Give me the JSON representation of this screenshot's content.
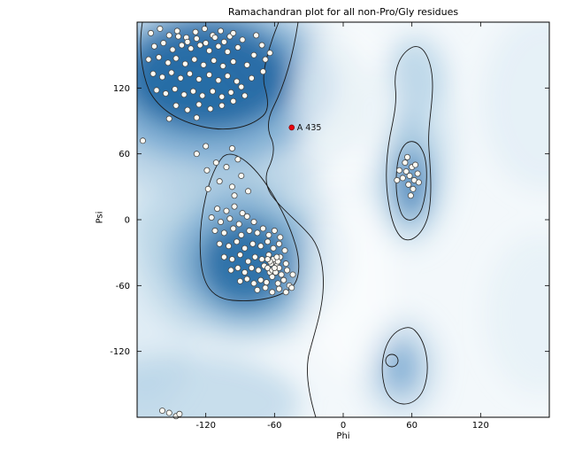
{
  "chart_data": {
    "type": "scatter",
    "title": "Ramachandran plot for all non-Pro/Gly residues",
    "xlabel": "Phi",
    "ylabel": "Psi",
    "xlim": [
      -180,
      180
    ],
    "ylim": [
      -180,
      180
    ],
    "xticks": [
      -120,
      -60,
      0,
      60,
      120
    ],
    "yticks": [
      -120,
      -60,
      0,
      60,
      120
    ],
    "grid": false,
    "legend": "none",
    "background_style": "blue density map with black contour lines (favored/allowed Ramachandran regions)",
    "colors": {
      "background": "#f3f8fb",
      "density_dark": "#19619f",
      "density_mid": "#4f8fc2",
      "density_light": "#9dc2dc",
      "contour": "#1a1a1a",
      "marker_fill": "#fdfbf3",
      "marker_stroke": "#4a4a4a",
      "outlier": "#e8000d"
    },
    "series": [
      {
        "name": "non-Pro/Gly residues",
        "marker": {
          "fill": "#fdfbf3",
          "stroke": "#4a4a4a",
          "radius": 3.1
        },
        "points": [
          [
            -168,
            170
          ],
          [
            -160,
            174
          ],
          [
            -152,
            168
          ],
          [
            -145,
            172
          ],
          [
            -137,
            166
          ],
          [
            -129,
            171
          ],
          [
            -121,
            174
          ],
          [
            -114,
            168
          ],
          [
            -107,
            172
          ],
          [
            -99,
            167
          ],
          [
            -165,
            158
          ],
          [
            -157,
            161
          ],
          [
            -149,
            155
          ],
          [
            -141,
            159
          ],
          [
            -133,
            156
          ],
          [
            -125,
            159
          ],
          [
            -117,
            154
          ],
          [
            -109,
            158
          ],
          [
            -101,
            153
          ],
          [
            -92,
            157
          ],
          [
            -170,
            146
          ],
          [
            -161,
            148
          ],
          [
            -153,
            143
          ],
          [
            -146,
            147
          ],
          [
            -138,
            142
          ],
          [
            -130,
            146
          ],
          [
            -122,
            141
          ],
          [
            -113,
            145
          ],
          [
            -105,
            140
          ],
          [
            -96,
            144
          ],
          [
            -166,
            133
          ],
          [
            -158,
            130
          ],
          [
            -150,
            134
          ],
          [
            -142,
            129
          ],
          [
            -134,
            133
          ],
          [
            -126,
            128
          ],
          [
            -117,
            132
          ],
          [
            -109,
            127
          ],
          [
            -101,
            131
          ],
          [
            -93,
            126
          ],
          [
            -163,
            118
          ],
          [
            -155,
            115
          ],
          [
            -147,
            119
          ],
          [
            -139,
            114
          ],
          [
            -131,
            117
          ],
          [
            -123,
            113
          ],
          [
            -114,
            117
          ],
          [
            -106,
            112
          ],
          [
            -98,
            116
          ],
          [
            -89,
            121
          ],
          [
            -146,
            104
          ],
          [
            -136,
            100
          ],
          [
            -126,
            105
          ],
          [
            -116,
            101
          ],
          [
            -106,
            104
          ],
          [
            -96,
            108
          ],
          [
            -86,
            113
          ],
          [
            -80,
            129
          ],
          [
            -84,
            141
          ],
          [
            -78,
            150
          ],
          [
            -71,
            159
          ],
          [
            -76,
            168
          ],
          [
            -88,
            164
          ],
          [
            -96,
            170
          ],
          [
            -104,
            162
          ],
          [
            -112,
            166
          ],
          [
            -120,
            161
          ],
          [
            -128,
            165
          ],
          [
            -136,
            162
          ],
          [
            -144,
            167
          ],
          [
            -68,
            146
          ],
          [
            -64,
            152
          ],
          [
            -70,
            135
          ],
          [
            -152,
            92
          ],
          [
            -128,
            93
          ],
          [
            -110,
            10
          ],
          [
            -102,
            8
          ],
          [
            -95,
            12
          ],
          [
            -88,
            6
          ],
          [
            -115,
            2
          ],
          [
            -107,
            -2
          ],
          [
            -99,
            1
          ],
          [
            -91,
            -4
          ],
          [
            -84,
            3
          ],
          [
            -78,
            -2
          ],
          [
            -112,
            -10
          ],
          [
            -104,
            -12
          ],
          [
            -96,
            -8
          ],
          [
            -89,
            -14
          ],
          [
            -82,
            -10
          ],
          [
            -75,
            -12
          ],
          [
            -70,
            -8
          ],
          [
            -65,
            -14
          ],
          [
            -60,
            -10
          ],
          [
            -55,
            -16
          ],
          [
            -108,
            -22
          ],
          [
            -100,
            -24
          ],
          [
            -93,
            -20
          ],
          [
            -86,
            -26
          ],
          [
            -79,
            -22
          ],
          [
            -72,
            -24
          ],
          [
            -66,
            -20
          ],
          [
            -61,
            -26
          ],
          [
            -56,
            -22
          ],
          [
            -51,
            -28
          ],
          [
            -104,
            -34
          ],
          [
            -97,
            -36
          ],
          [
            -90,
            -32
          ],
          [
            -83,
            -38
          ],
          [
            -77,
            -34
          ],
          [
            -71,
            -36
          ],
          [
            -65,
            -32
          ],
          [
            -60,
            -38
          ],
          [
            -55,
            -34
          ],
          [
            -50,
            -40
          ],
          [
            -98,
            -46
          ],
          [
            -92,
            -44
          ],
          [
            -86,
            -48
          ],
          [
            -80,
            -44
          ],
          [
            -74,
            -46
          ],
          [
            -69,
            -42
          ],
          [
            -64,
            -48
          ],
          [
            -59,
            -44
          ],
          [
            -54,
            -50
          ],
          [
            -49,
            -46
          ],
          [
            -90,
            -56
          ],
          [
            -84,
            -54
          ],
          [
            -78,
            -58
          ],
          [
            -72,
            -55
          ],
          [
            -67,
            -57
          ],
          [
            -62,
            -52
          ],
          [
            -57,
            -58
          ],
          [
            -52,
            -55
          ],
          [
            -47,
            -60
          ],
          [
            -44,
            -50
          ],
          [
            -75,
            -64
          ],
          [
            -68,
            -62
          ],
          [
            -62,
            -66
          ],
          [
            -56,
            -63
          ],
          [
            -50,
            -66
          ],
          [
            -45,
            -62
          ],
          [
            -63,
            -40
          ],
          [
            -58,
            -42
          ],
          [
            -61,
            -36
          ],
          [
            -66,
            -44
          ],
          [
            -57,
            -38
          ],
          [
            -62,
            -46
          ],
          [
            -59,
            -48
          ],
          [
            -64,
            -38
          ],
          [
            -56,
            -44
          ],
          [
            -60,
            -44
          ],
          [
            -58,
            -34
          ],
          [
            -66,
            -36
          ],
          [
            -118,
            28
          ],
          [
            -108,
            35
          ],
          [
            -97,
            30
          ],
          [
            -119,
            45
          ],
          [
            -111,
            52
          ],
          [
            -89,
            40
          ],
          [
            -95,
            22
          ],
          [
            -83,
            26
          ],
          [
            -102,
            48
          ],
          [
            -92,
            55
          ],
          [
            58,
            40
          ],
          [
            62,
            36
          ],
          [
            55,
            44
          ],
          [
            60,
            48
          ],
          [
            52,
            38
          ],
          [
            65,
            42
          ],
          [
            57,
            32
          ],
          [
            61,
            28
          ],
          [
            54,
            52
          ],
          [
            49,
            45
          ],
          [
            63,
            50
          ],
          [
            59,
            22
          ],
          [
            47,
            36
          ],
          [
            66,
            34
          ],
          [
            56,
            57
          ],
          [
            -175,
            72
          ],
          [
            -128,
            60
          ],
          [
            -120,
            67
          ],
          [
            -97,
            65
          ],
          [
            -152,
            -176
          ],
          [
            -146,
            -179
          ],
          [
            -158,
            -174
          ],
          [
            -143,
            -177
          ]
        ]
      }
    ],
    "outlier": {
      "label": "A 435",
      "phi": -45,
      "psi": 84,
      "color": "#e8000d"
    }
  }
}
